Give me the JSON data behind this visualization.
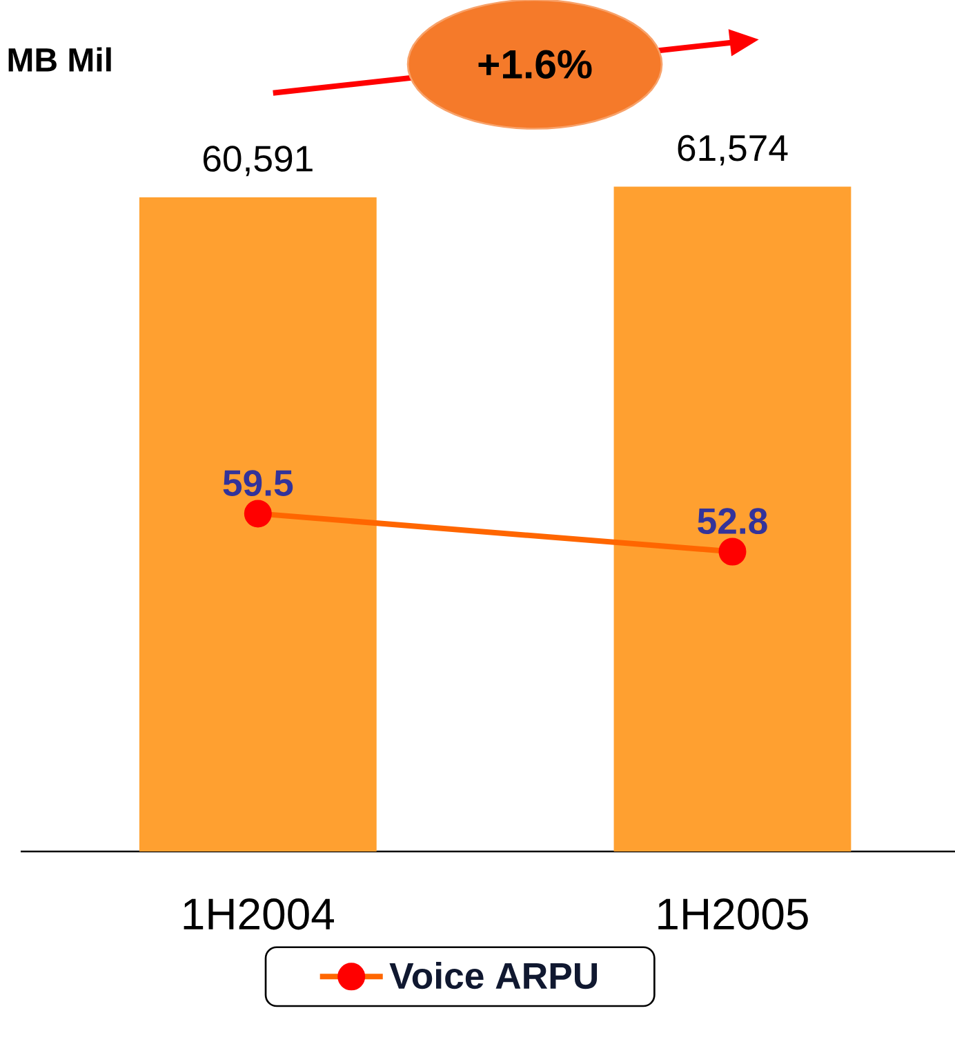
{
  "chart_data": {
    "type": "bar",
    "title": "MB Mil",
    "categories": [
      "1H2004",
      "1H2005"
    ],
    "series": [
      {
        "color": "#ffa030",
        "values": [
          60591,
          61574
        ],
        "value_labels": [
          "60,591",
          "61,574"
        ]
      },
      {
        "type": "line",
        "name": "Voice ARPU",
        "color": "#ff6600",
        "axis": "y2",
        "values": [
          59.5,
          52.8
        ],
        "value_labels": [
          "59.5",
          "52.8"
        ]
      }
    ],
    "annotations": [
      "+1.6%"
    ],
    "marker": "circle",
    "legend": "bottom"
  }
}
